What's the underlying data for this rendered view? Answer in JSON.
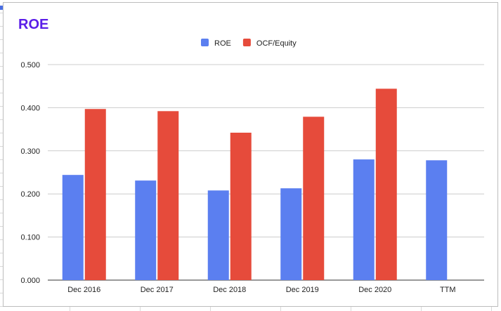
{
  "chart_data": {
    "type": "bar",
    "title": "ROE",
    "categories": [
      "Dec 2016",
      "Dec 2017",
      "Dec 2018",
      "Dec 2019",
      "Dec 2020",
      "TTM"
    ],
    "series": [
      {
        "name": "ROE",
        "color": "#5b7ff0",
        "values": [
          0.244,
          0.231,
          0.208,
          0.213,
          0.28,
          0.278
        ]
      },
      {
        "name": "OCF/Equity",
        "color": "#e64b3b",
        "values": [
          0.397,
          0.392,
          0.342,
          0.379,
          0.444,
          null
        ]
      }
    ],
    "ylim": [
      0,
      0.5
    ],
    "yticks": [
      "0.000",
      "0.100",
      "0.200",
      "0.300",
      "0.400",
      "0.500"
    ],
    "ytick_values": [
      0,
      0.1,
      0.2,
      0.3,
      0.4,
      0.5
    ],
    "grid": true,
    "legend_position": "top-center",
    "title_color": "#5b1ee8"
  }
}
